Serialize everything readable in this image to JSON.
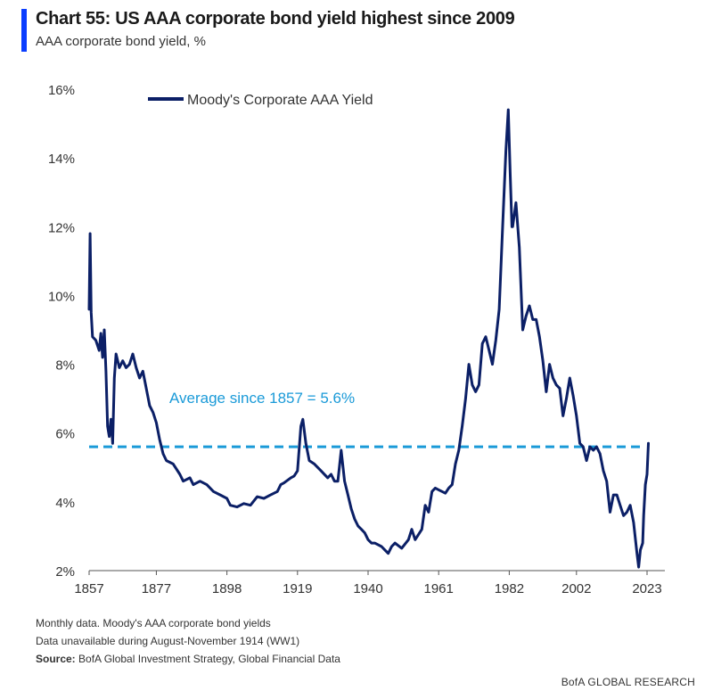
{
  "header": {
    "title": "Chart 55: US AAA corporate bond yield highest since 2009",
    "subtitle": "AAA corporate bond yield, %"
  },
  "footer": {
    "note1": "Monthly data. Moody's AAA corporate bond yields",
    "note2": "Data unavailable during August-November 1914  (WW1)",
    "source_label": "Source:",
    "source_text": " BofA Global Investment Strategy, Global Financial Data",
    "brand": "BofA GLOBAL RESEARCH"
  },
  "colors": {
    "accent": "#0a3dff",
    "series": "#0b1f66",
    "average": "#1a9ad8",
    "axis": "#555555"
  },
  "chart_data": {
    "type": "line",
    "title": "",
    "xlabel": "",
    "ylabel": "",
    "xlim": [
      1857,
      2023
    ],
    "ylim": [
      2,
      16
    ],
    "x_ticks": [
      "1857",
      "1877",
      "1898",
      "1919",
      "1940",
      "1961",
      "1982",
      "2002",
      "2023"
    ],
    "y_ticks": [
      "2%",
      "4%",
      "6%",
      "8%",
      "10%",
      "12%",
      "14%",
      "16%"
    ],
    "legend": "top-left",
    "annotation": {
      "text": "Average since 1857 = 5.6%",
      "value": 5.6
    },
    "series": [
      {
        "name": "Moody's Corporate AAA Yield",
        "points": [
          [
            1857,
            9.6
          ],
          [
            1857.3,
            11.8
          ],
          [
            1857.6,
            9.5
          ],
          [
            1858,
            8.8
          ],
          [
            1859,
            8.7
          ],
          [
            1860,
            8.4
          ],
          [
            1860.5,
            8.9
          ],
          [
            1861,
            8.2
          ],
          [
            1861.5,
            9.0
          ],
          [
            1862,
            7.8
          ],
          [
            1862.5,
            6.2
          ],
          [
            1863,
            5.9
          ],
          [
            1863.5,
            6.4
          ],
          [
            1864,
            5.7
          ],
          [
            1864.5,
            7.6
          ],
          [
            1865,
            8.3
          ],
          [
            1866,
            7.9
          ],
          [
            1867,
            8.1
          ],
          [
            1868,
            7.9
          ],
          [
            1869,
            8.0
          ],
          [
            1870,
            8.3
          ],
          [
            1871,
            7.9
          ],
          [
            1872,
            7.6
          ],
          [
            1873,
            7.8
          ],
          [
            1874,
            7.3
          ],
          [
            1875,
            6.8
          ],
          [
            1876,
            6.6
          ],
          [
            1877,
            6.3
          ],
          [
            1878,
            5.8
          ],
          [
            1879,
            5.4
          ],
          [
            1880,
            5.2
          ],
          [
            1882,
            5.1
          ],
          [
            1884,
            4.8
          ],
          [
            1885,
            4.6
          ],
          [
            1887,
            4.7
          ],
          [
            1888,
            4.5
          ],
          [
            1890,
            4.6
          ],
          [
            1892,
            4.5
          ],
          [
            1894,
            4.3
          ],
          [
            1896,
            4.2
          ],
          [
            1898,
            4.1
          ],
          [
            1899,
            3.9
          ],
          [
            1901,
            3.85
          ],
          [
            1903,
            3.95
          ],
          [
            1905,
            3.9
          ],
          [
            1907,
            4.15
          ],
          [
            1909,
            4.1
          ],
          [
            1911,
            4.2
          ],
          [
            1913,
            4.3
          ],
          [
            1914,
            4.5
          ],
          [
            1915,
            4.55
          ],
          [
            1917,
            4.7
          ],
          [
            1918,
            4.75
          ],
          [
            1919,
            4.9
          ],
          [
            1920,
            6.2
          ],
          [
            1920.6,
            6.4
          ],
          [
            1921.5,
            5.7
          ],
          [
            1922.5,
            5.2
          ],
          [
            1924,
            5.1
          ],
          [
            1926,
            4.9
          ],
          [
            1928,
            4.7
          ],
          [
            1929,
            4.8
          ],
          [
            1930,
            4.6
          ],
          [
            1931,
            4.6
          ],
          [
            1932,
            5.5
          ],
          [
            1933,
            4.6
          ],
          [
            1934,
            4.2
          ],
          [
            1935,
            3.8
          ],
          [
            1936,
            3.5
          ],
          [
            1937,
            3.3
          ],
          [
            1938,
            3.2
          ],
          [
            1939,
            3.1
          ],
          [
            1940,
            2.9
          ],
          [
            1941,
            2.8
          ],
          [
            1942,
            2.8
          ],
          [
            1944,
            2.7
          ],
          [
            1945,
            2.6
          ],
          [
            1946,
            2.5
          ],
          [
            1947,
            2.7
          ],
          [
            1948,
            2.8
          ],
          [
            1950,
            2.65
          ],
          [
            1952,
            2.9
          ],
          [
            1953,
            3.2
          ],
          [
            1954,
            2.9
          ],
          [
            1956,
            3.2
          ],
          [
            1957,
            3.9
          ],
          [
            1958,
            3.7
          ],
          [
            1959,
            4.3
          ],
          [
            1960,
            4.4
          ],
          [
            1961,
            4.35
          ],
          [
            1962,
            4.3
          ],
          [
            1963,
            4.25
          ],
          [
            1964,
            4.4
          ],
          [
            1965,
            4.5
          ],
          [
            1966,
            5.1
          ],
          [
            1967,
            5.5
          ],
          [
            1968,
            6.2
          ],
          [
            1969,
            7.0
          ],
          [
            1970,
            8.0
          ],
          [
            1971,
            7.4
          ],
          [
            1972,
            7.2
          ],
          [
            1973,
            7.4
          ],
          [
            1974,
            8.6
          ],
          [
            1975,
            8.8
          ],
          [
            1976,
            8.4
          ],
          [
            1977,
            8.0
          ],
          [
            1978,
            8.7
          ],
          [
            1979,
            9.6
          ],
          [
            1980,
            11.9
          ],
          [
            1981,
            14.2
          ],
          [
            1981.7,
            15.4
          ],
          [
            1982.3,
            13.5
          ],
          [
            1982.8,
            12.0
          ],
          [
            1983,
            12.0
          ],
          [
            1984,
            12.7
          ],
          [
            1985,
            11.4
          ],
          [
            1986,
            9.0
          ],
          [
            1987,
            9.4
          ],
          [
            1988,
            9.7
          ],
          [
            1989,
            9.3
          ],
          [
            1990,
            9.3
          ],
          [
            1991,
            8.8
          ],
          [
            1992,
            8.1
          ],
          [
            1993,
            7.2
          ],
          [
            1994,
            8.0
          ],
          [
            1995,
            7.6
          ],
          [
            1996,
            7.4
          ],
          [
            1997,
            7.3
          ],
          [
            1998,
            6.5
          ],
          [
            1999,
            7.0
          ],
          [
            2000,
            7.6
          ],
          [
            2001,
            7.1
          ],
          [
            2002,
            6.5
          ],
          [
            2003,
            5.7
          ],
          [
            2004,
            5.6
          ],
          [
            2005,
            5.2
          ],
          [
            2006,
            5.6
          ],
          [
            2007,
            5.5
          ],
          [
            2008,
            5.6
          ],
          [
            2009,
            5.4
          ],
          [
            2010,
            4.9
          ],
          [
            2011,
            4.6
          ],
          [
            2012,
            3.7
          ],
          [
            2013,
            4.2
          ],
          [
            2014,
            4.2
          ],
          [
            2015,
            3.9
          ],
          [
            2016,
            3.6
          ],
          [
            2017,
            3.7
          ],
          [
            2018,
            3.9
          ],
          [
            2019,
            3.4
          ],
          [
            2020,
            2.5
          ],
          [
            2020.5,
            2.1
          ],
          [
            2021,
            2.6
          ],
          [
            2021.7,
            2.8
          ],
          [
            2022,
            3.6
          ],
          [
            2022.5,
            4.5
          ],
          [
            2023,
            4.8
          ],
          [
            2023.4,
            5.7
          ]
        ]
      }
    ]
  }
}
